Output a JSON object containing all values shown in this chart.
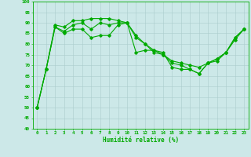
{
  "title": "",
  "xlabel": "Humidité relative (%)",
  "ylabel": "",
  "xlim": [
    -0.5,
    23.5
  ],
  "ylim": [
    40,
    100
  ],
  "yticks": [
    40,
    45,
    50,
    55,
    60,
    65,
    70,
    75,
    80,
    85,
    90,
    95,
    100
  ],
  "xticks": [
    0,
    1,
    2,
    3,
    4,
    5,
    6,
    7,
    8,
    9,
    10,
    11,
    12,
    13,
    14,
    15,
    16,
    17,
    18,
    19,
    20,
    21,
    22,
    23
  ],
  "bg_color": "#cce8e8",
  "grid_color": "#aacccc",
  "line_color": "#00aa00",
  "line1": [
    50,
    68,
    89,
    88,
    91,
    91,
    92,
    92,
    92,
    91,
    90,
    76,
    77,
    77,
    76,
    69,
    68,
    68,
    66,
    71,
    73,
    76,
    83,
    87
  ],
  "line2": [
    50,
    68,
    88,
    85,
    87,
    87,
    83,
    84,
    84,
    89,
    90,
    84,
    80,
    76,
    75,
    72,
    71,
    70,
    69,
    71,
    72,
    76,
    82,
    87
  ],
  "line3": [
    50,
    68,
    88,
    86,
    89,
    90,
    87,
    90,
    89,
    90,
    90,
    83,
    80,
    77,
    75,
    71,
    70,
    68,
    66,
    71,
    73,
    76,
    83,
    87
  ]
}
